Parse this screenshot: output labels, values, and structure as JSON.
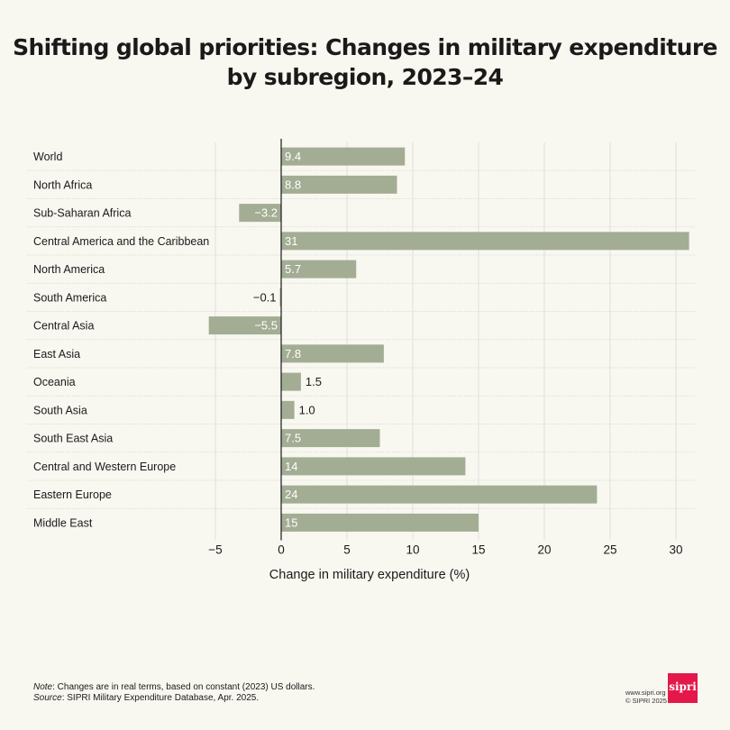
{
  "title_line1": "Shifting global priorities: Changes in military expenditure",
  "title_line2": "by subregion, 2023–24",
  "chart_data": {
    "type": "bar",
    "orientation": "horizontal",
    "categories": [
      "World",
      "North Africa",
      "Sub-Saharan Africa",
      "Central America and the Caribbean",
      "North America",
      "South America",
      "Central Asia",
      "East Asia",
      "Oceania",
      "South Asia",
      "South East Asia",
      "Central and Western Europe",
      "Eastern Europe",
      "Middle East"
    ],
    "values": [
      9.4,
      8.8,
      -3.2,
      31,
      5.7,
      -0.1,
      -5.5,
      7.8,
      1.5,
      1.0,
      7.5,
      14,
      24,
      15
    ],
    "data_labels": [
      "9.4",
      "8.8",
      "−3.2",
      "31",
      "5.7",
      "−0.1",
      "−5.5",
      "7.8",
      "1.5",
      "1.0",
      "7.5",
      "14",
      "24",
      "15"
    ],
    "xlabel": "Change in military expenditure (%)",
    "ylabel": "",
    "xlim": [
      -5.5,
      31
    ],
    "xticks": [
      -5,
      0,
      5,
      10,
      15,
      20,
      25,
      30
    ],
    "xtick_labels": [
      "−5",
      "0",
      "5",
      "10",
      "15",
      "20",
      "25",
      "30"
    ],
    "grid": true,
    "bar_color": "#a3ad94"
  },
  "note_label": "Note",
  "note_text": ": Changes are in real terms, based on constant (2023) US dollars.",
  "source_label": "Source",
  "source_text": ": SIPRI Military Expenditure Database, Apr. 2025.",
  "credit_url": "www.sipri.org",
  "credit_copy": "© SIPRI 2025",
  "logo_text": "sipri",
  "logo_color": "#e4184a"
}
